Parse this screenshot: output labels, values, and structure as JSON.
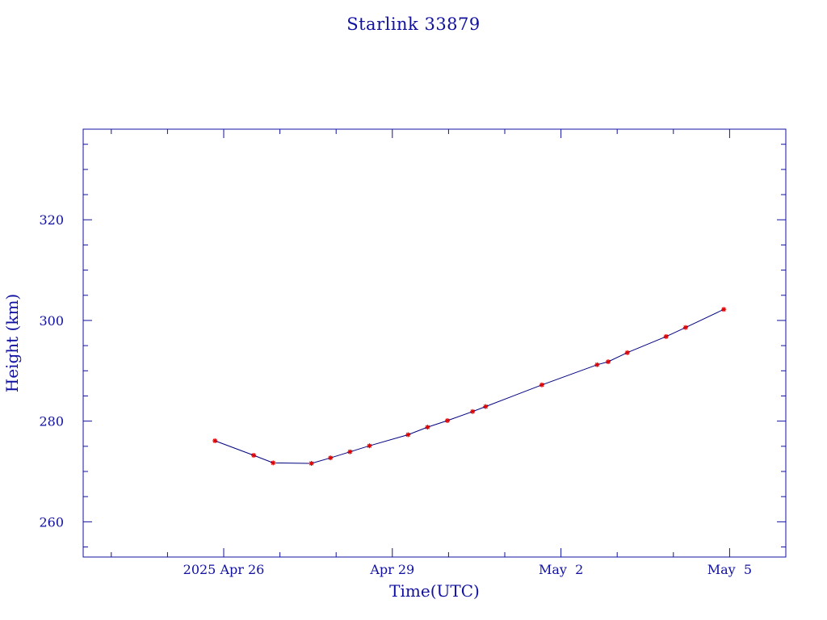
{
  "chart_data": {
    "type": "line",
    "title": "Starlink 33879",
    "xlabel": "Time(UTC)",
    "ylabel": "Height (km)",
    "x_unit": "days",
    "xlim": [
      "2025-04-23T12:00",
      "2025-05-06T00:00"
    ],
    "ylim": [
      253,
      338
    ],
    "x_ticks": [
      {
        "value": "2025-04-26",
        "label": "2025 Apr 26"
      },
      {
        "value": "2025-04-29",
        "label": "Apr 29"
      },
      {
        "value": "2025-05-02",
        "label": "May  2"
      },
      {
        "value": "2025-05-05",
        "label": "May  5"
      }
    ],
    "y_ticks": [
      260,
      280,
      300,
      320
    ],
    "grid": false,
    "series": [
      {
        "x": [
          "2025-04-25T20:16",
          "2025-04-26T12:48",
          "2025-04-26T21:07",
          "2025-04-27T13:26",
          "2025-04-27T21:36",
          "2025-04-28T05:55",
          "2025-04-28T14:14",
          "2025-04-29T06:43",
          "2025-04-29T15:02",
          "2025-04-29T23:31",
          "2025-04-30T10:16",
          "2025-04-30T15:50",
          "2025-05-01T15:50",
          "2025-05-02T15:26",
          "2025-05-02T20:09",
          "2025-05-03T04:19",
          "2025-05-03T20:52",
          "2025-05-04T05:12",
          "2025-05-04T21:31"
        ],
        "y": [
          276.1,
          273.2,
          271.7,
          271.6,
          272.7,
          273.9,
          275.1,
          277.3,
          278.8,
          280.1,
          281.9,
          282.9,
          287.2,
          291.2,
          291.8,
          293.6,
          296.8,
          298.6,
          302.2
        ],
        "line_color": "#000080",
        "marker_color": "#e00000",
        "marker": "star"
      }
    ],
    "colors": {
      "frame": "#1010a0",
      "text": "#1010a0",
      "line": "#000080",
      "marker": "#e00000"
    }
  }
}
